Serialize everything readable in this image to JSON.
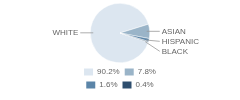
{
  "chart_data": {
    "type": "pie",
    "categories": [
      "WHITE",
      "ASIAN",
      "HISPANIC",
      "BLACK"
    ],
    "values": [
      90.2,
      7.8,
      1.6,
      0.4
    ],
    "value_labels": [
      "90.2%",
      "7.8%",
      "1.6%",
      "0.4%"
    ],
    "colors": [
      "#dce6f0",
      "#9ab4c8",
      "#5b85a8",
      "#2e4e6e"
    ],
    "legend": "bottom"
  }
}
